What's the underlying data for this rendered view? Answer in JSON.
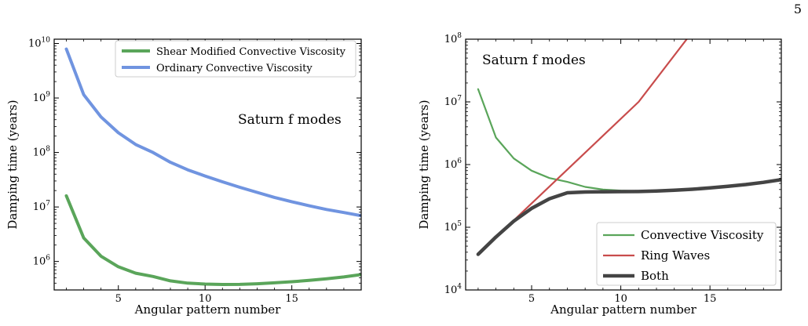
{
  "page": {
    "number": "5"
  },
  "chart_data": [
    {
      "type": "line",
      "yscale": "log",
      "annotation": "Saturn f modes",
      "xlabel": "Angular pattern number",
      "ylabel": "Damping time (years)",
      "xlim": [
        1.3,
        19
      ],
      "ylim": [
        300000,
        12000000000
      ],
      "xticks": [
        5,
        10,
        15
      ],
      "yticks": [
        1000000,
        10000000,
        100000000,
        1000000000,
        10000000000
      ],
      "ytick_labels": [
        {
          "base": "10",
          "exp": "6"
        },
        {
          "base": "10",
          "exp": "7"
        },
        {
          "base": "10",
          "exp": "8"
        },
        {
          "base": "10",
          "exp": "9"
        },
        {
          "base": "10",
          "exp": "10"
        }
      ],
      "grid": false,
      "legend_position": "top-right",
      "series": [
        {
          "name": "Shear Modified Convective Viscosity",
          "color": "#5aa55a",
          "x": [
            2,
            3,
            4,
            5,
            6,
            7,
            8,
            9,
            10,
            11,
            12,
            13,
            14,
            15,
            16,
            17,
            18,
            19
          ],
          "y": [
            16000000,
            2700000,
            1250000,
            800000,
            610000,
            530000,
            440000,
            400000,
            385000,
            378000,
            380000,
            390000,
            405000,
            425000,
            450000,
            480000,
            520000,
            575000
          ]
        },
        {
          "name": "Ordinary Convective Viscosity",
          "color": "#7094e0",
          "x": [
            2,
            3,
            4,
            5,
            6,
            7,
            8,
            9,
            10,
            11,
            12,
            13,
            14,
            15,
            16,
            17,
            18,
            19
          ],
          "y": [
            7900000000,
            1150000000,
            450000000,
            230000000,
            140000000,
            100000000,
            66000000,
            48000000,
            37000000,
            29000000,
            23000000,
            18500000,
            15000000,
            12500000,
            10500000,
            9000000,
            7900000,
            6900000
          ]
        }
      ]
    },
    {
      "type": "line",
      "yscale": "log",
      "annotation": "Saturn f modes",
      "xlabel": "Angular pattern number",
      "ylabel": "Damping time (years)",
      "xlim": [
        1.3,
        19
      ],
      "ylim": [
        10000,
        100000000
      ],
      "xticks": [
        5,
        10,
        15
      ],
      "yticks": [
        10000,
        100000,
        1000000,
        10000000,
        100000000
      ],
      "ytick_labels": [
        {
          "base": "10",
          "exp": "4"
        },
        {
          "base": "10",
          "exp": "5"
        },
        {
          "base": "10",
          "exp": "6"
        },
        {
          "base": "10",
          "exp": "7"
        },
        {
          "base": "10",
          "exp": "8"
        }
      ],
      "grid": false,
      "legend_position": "bottom-right",
      "series": [
        {
          "name": "Convective Viscosity",
          "color": "#5aa55a",
          "x": [
            2,
            3,
            4,
            5,
            6,
            7,
            8,
            9,
            10,
            11,
            12,
            13,
            14,
            15,
            16,
            17,
            18,
            19
          ],
          "y": [
            16000000,
            2700000,
            1250000,
            800000,
            610000,
            530000,
            440000,
            400000,
            385000,
            378000,
            380000,
            390000,
            405000,
            425000,
            450000,
            480000,
            520000,
            575000
          ]
        },
        {
          "name": "Ring Waves",
          "color": "#c84c4c",
          "x": [
            2,
            5,
            8,
            11,
            13.7
          ],
          "y": [
            37000,
            240000,
            1550000,
            10000000,
            100000000
          ]
        },
        {
          "name": "Both",
          "color": "#444444",
          "x": [
            2,
            3,
            4,
            5,
            6,
            7,
            8,
            9,
            10,
            11,
            12,
            13,
            14,
            15,
            16,
            17,
            18,
            19
          ],
          "y": [
            37000,
            70000,
            125000,
            200000,
            285000,
            355000,
            365000,
            368000,
            370000,
            372000,
            378000,
            389000,
            404000,
            424000,
            450000,
            480000,
            520000,
            575000
          ]
        }
      ]
    }
  ]
}
